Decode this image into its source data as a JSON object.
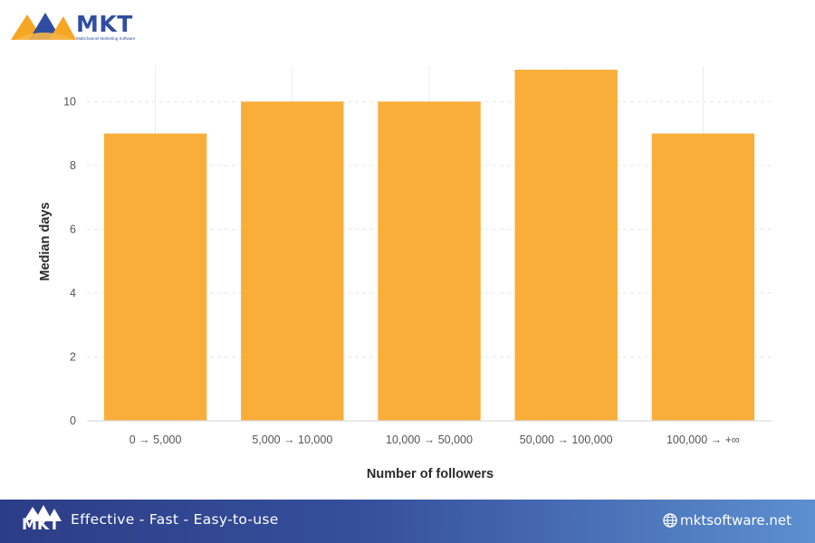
{
  "brand": {
    "name": "MKT",
    "subtitle": "Multichannel Marketing Software",
    "primary_color": "#2f4ea1",
    "accent_color": "#f5a623"
  },
  "footer": {
    "tagline": "Effective - Fast - Easy-to-use",
    "website": "mktsoftware.net",
    "website_icon": "globe-icon"
  },
  "chart_data": {
    "type": "bar",
    "title": "",
    "xlabel": "Number of followers",
    "ylabel": "Median days",
    "categories": [
      "0 → 5,000",
      "5,000 → 10,000",
      "10,000 → 50,000",
      "50,000 → 100,000",
      "100,000 → +∞"
    ],
    "values": [
      9,
      10,
      10,
      11,
      9
    ],
    "ylim": [
      0,
      11
    ],
    "yticks": [
      0,
      2,
      4,
      6,
      8,
      10
    ],
    "grid": true,
    "legend": "none",
    "bar_color": "#f9ae3a"
  }
}
